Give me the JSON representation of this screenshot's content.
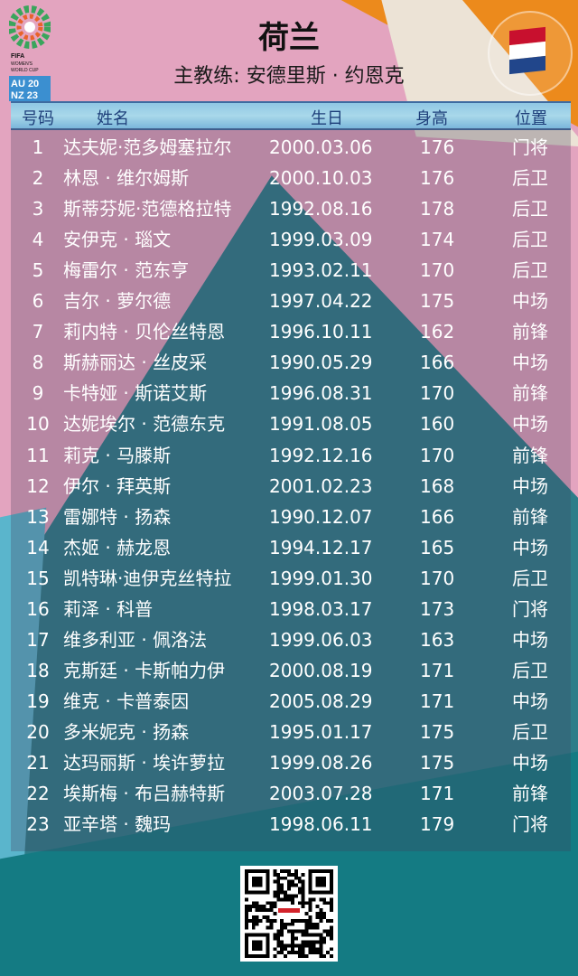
{
  "header": {
    "title": "荷兰",
    "coach": "主教练: 安德里斯 · 约恩克",
    "logo_text": [
      "FIFA WOMEN'S WORLD CUP",
      "AU NZ 2023"
    ],
    "flag": "netherlands-flag",
    "flag_colors": [
      "#c8102e",
      "#ffffff",
      "#21468b"
    ]
  },
  "table": {
    "columns": [
      "号码",
      "姓名",
      "生日",
      "身高",
      "位置"
    ],
    "rows": [
      {
        "no": "1",
        "name": "达夫妮·范多姆塞拉尔",
        "dob": "2000.03.06",
        "height": "176",
        "pos": "门将"
      },
      {
        "no": "2",
        "name": "林恩 · 维尔姆斯",
        "dob": "2000.10.03",
        "height": "176",
        "pos": "后卫"
      },
      {
        "no": "3",
        "name": "斯蒂芬妮·范德格拉特",
        "dob": "1992.08.16",
        "height": "178",
        "pos": "后卫"
      },
      {
        "no": "4",
        "name": "安伊克 · 瑙文",
        "dob": "1999.03.09",
        "height": "174",
        "pos": "后卫"
      },
      {
        "no": "5",
        "name": "梅雷尔 · 范东亨",
        "dob": "1993.02.11",
        "height": "170",
        "pos": "后卫"
      },
      {
        "no": "6",
        "name": "吉尔 · 萝尔德",
        "dob": "1997.04.22",
        "height": "175",
        "pos": "中场"
      },
      {
        "no": "7",
        "name": "莉内特 · 贝伦丝特恩",
        "dob": "1996.10.11",
        "height": "162",
        "pos": "前锋"
      },
      {
        "no": "8",
        "name": "斯赫丽达 · 丝皮采",
        "dob": "1990.05.29",
        "height": "166",
        "pos": "中场"
      },
      {
        "no": "9",
        "name": "卡特娅 · 斯诺艾斯",
        "dob": "1996.08.31",
        "height": "170",
        "pos": "前锋"
      },
      {
        "no": "10",
        "name": "达妮埃尔 · 范德东克",
        "dob": "1991.08.05",
        "height": "160",
        "pos": "中场"
      },
      {
        "no": "11",
        "name": "莉克 · 马滕斯",
        "dob": "1992.12.16",
        "height": "170",
        "pos": "前锋"
      },
      {
        "no": "12",
        "name": "伊尔 · 拜英斯",
        "dob": "2001.02.23",
        "height": "168",
        "pos": "中场"
      },
      {
        "no": "13",
        "name": "雷娜特 · 扬森",
        "dob": "1990.12.07",
        "height": "166",
        "pos": "前锋"
      },
      {
        "no": "14",
        "name": "杰姬 · 赫龙恩",
        "dob": "1994.12.17",
        "height": "165",
        "pos": "中场"
      },
      {
        "no": "15",
        "name": "凯特琳·迪伊克丝特拉",
        "dob": "1999.01.30",
        "height": "170",
        "pos": "后卫"
      },
      {
        "no": "16",
        "name": "莉泽 · 科普",
        "dob": "1998.03.17",
        "height": "173",
        "pos": "门将"
      },
      {
        "no": "17",
        "name": "维多利亚 · 佩洛法",
        "dob": "1999.06.03",
        "height": "163",
        "pos": "中场"
      },
      {
        "no": "18",
        "name": "克斯廷 · 卡斯帕力伊",
        "dob": "2000.08.19",
        "height": "171",
        "pos": "后卫"
      },
      {
        "no": "19",
        "name": "维克 · 卡普泰因",
        "dob": "2005.08.29",
        "height": "171",
        "pos": "中场"
      },
      {
        "no": "20",
        "name": "多米妮克 · 扬森",
        "dob": "1995.01.17",
        "height": "175",
        "pos": "后卫"
      },
      {
        "no": "21",
        "name": "达玛丽斯 · 埃许萝拉",
        "dob": "1999.08.26",
        "height": "175",
        "pos": "中场"
      },
      {
        "no": "22",
        "name": "埃斯梅 · 布吕赫特斯",
        "dob": "2003.07.28",
        "height": "171",
        "pos": "前锋"
      },
      {
        "no": "23",
        "name": "亚辛塔 · 魏玛",
        "dob": "1998.06.11",
        "height": "179",
        "pos": "门将"
      }
    ]
  },
  "footer": {
    "qr": "qr-code"
  }
}
